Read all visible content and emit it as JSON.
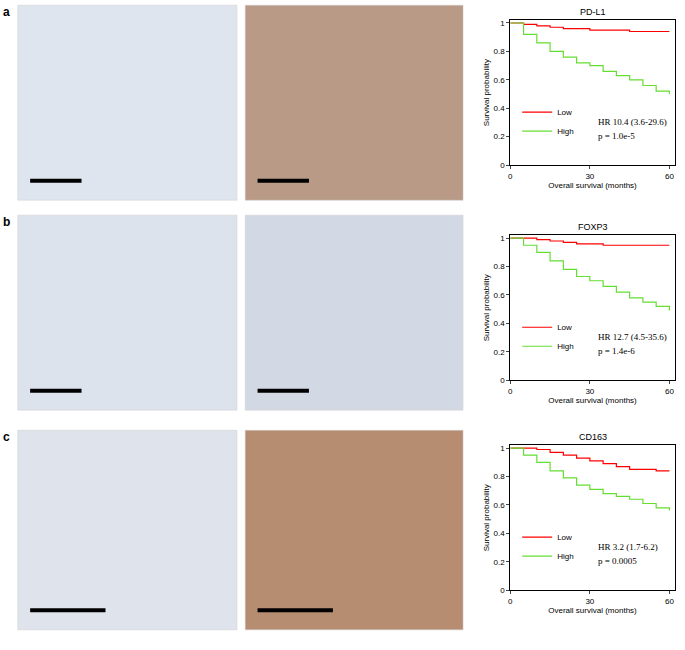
{
  "panel_labels": [
    "a",
    "b",
    "c"
  ],
  "chart_data": [
    {
      "type": "line",
      "line_style": "step",
      "title": "PD-L1",
      "x_label": "Overall survival (months)",
      "y_label": "Survival probability",
      "xlim": [
        0,
        62
      ],
      "ylim": [
        0,
        1.02
      ],
      "xticks": [
        0,
        30,
        60
      ],
      "yticks": [
        0,
        0.2,
        0.4,
        0.6,
        0.8,
        1
      ],
      "grid": false,
      "legend": "lower left",
      "x": [
        0,
        5,
        10,
        15,
        20,
        25,
        30,
        35,
        40,
        45,
        50,
        55,
        60
      ],
      "series": [
        {
          "name": "Low",
          "color": "#ff0000",
          "values": [
            1,
            0.99,
            0.98,
            0.97,
            0.96,
            0.96,
            0.95,
            0.95,
            0.95,
            0.94,
            0.94,
            0.94,
            0.94
          ]
        },
        {
          "name": "High",
          "color": "#66dd33",
          "values": [
            1,
            0.92,
            0.86,
            0.8,
            0.76,
            0.72,
            0.7,
            0.66,
            0.63,
            0.6,
            0.56,
            0.52,
            0.5
          ]
        }
      ],
      "annotations": [
        "HR 10.4 (3.6-29.6)",
        "p = 1.0e-5"
      ]
    },
    {
      "type": "line",
      "line_style": "step",
      "title": "FOXP3",
      "x_label": "Overall survival (months)",
      "y_label": "Survival probability",
      "xlim": [
        0,
        62
      ],
      "ylim": [
        0,
        1.02
      ],
      "xticks": [
        0,
        30,
        60
      ],
      "yticks": [
        0,
        0.2,
        0.4,
        0.6,
        0.8,
        1
      ],
      "grid": false,
      "legend": "lower left",
      "x": [
        0,
        5,
        10,
        15,
        20,
        25,
        30,
        35,
        40,
        45,
        50,
        55,
        60
      ],
      "series": [
        {
          "name": "Low",
          "color": "#ff0000",
          "values": [
            1,
            1,
            0.99,
            0.98,
            0.97,
            0.96,
            0.96,
            0.95,
            0.95,
            0.95,
            0.95,
            0.95,
            0.95
          ]
        },
        {
          "name": "High",
          "color": "#66dd33",
          "values": [
            1,
            0.95,
            0.9,
            0.84,
            0.78,
            0.73,
            0.7,
            0.66,
            0.62,
            0.58,
            0.55,
            0.52,
            0.49
          ]
        }
      ],
      "annotations": [
        "HR 12.7 (4.5-35.6)",
        "p = 1.4e-6"
      ]
    },
    {
      "type": "line",
      "line_style": "step",
      "title": "CD163",
      "x_label": "Overall survival (months)",
      "y_label": "Survival probability",
      "xlim": [
        0,
        62
      ],
      "ylim": [
        0,
        1.02
      ],
      "xticks": [
        0,
        30,
        60
      ],
      "yticks": [
        0,
        0.2,
        0.4,
        0.6,
        0.8,
        1
      ],
      "grid": false,
      "legend": "lower left",
      "x": [
        0,
        5,
        10,
        15,
        20,
        25,
        30,
        35,
        40,
        45,
        50,
        55,
        60
      ],
      "series": [
        {
          "name": "Low",
          "color": "#ff0000",
          "values": [
            1,
            1,
            0.99,
            0.97,
            0.95,
            0.93,
            0.91,
            0.89,
            0.87,
            0.85,
            0.85,
            0.84,
            0.84
          ]
        },
        {
          "name": "High",
          "color": "#66dd33",
          "values": [
            1,
            0.95,
            0.9,
            0.84,
            0.79,
            0.74,
            0.71,
            0.68,
            0.66,
            0.64,
            0.61,
            0.58,
            0.56
          ]
        }
      ],
      "annotations": [
        "HR 3.2 (1.7-6.2)",
        "p = 0.0005"
      ]
    }
  ]
}
